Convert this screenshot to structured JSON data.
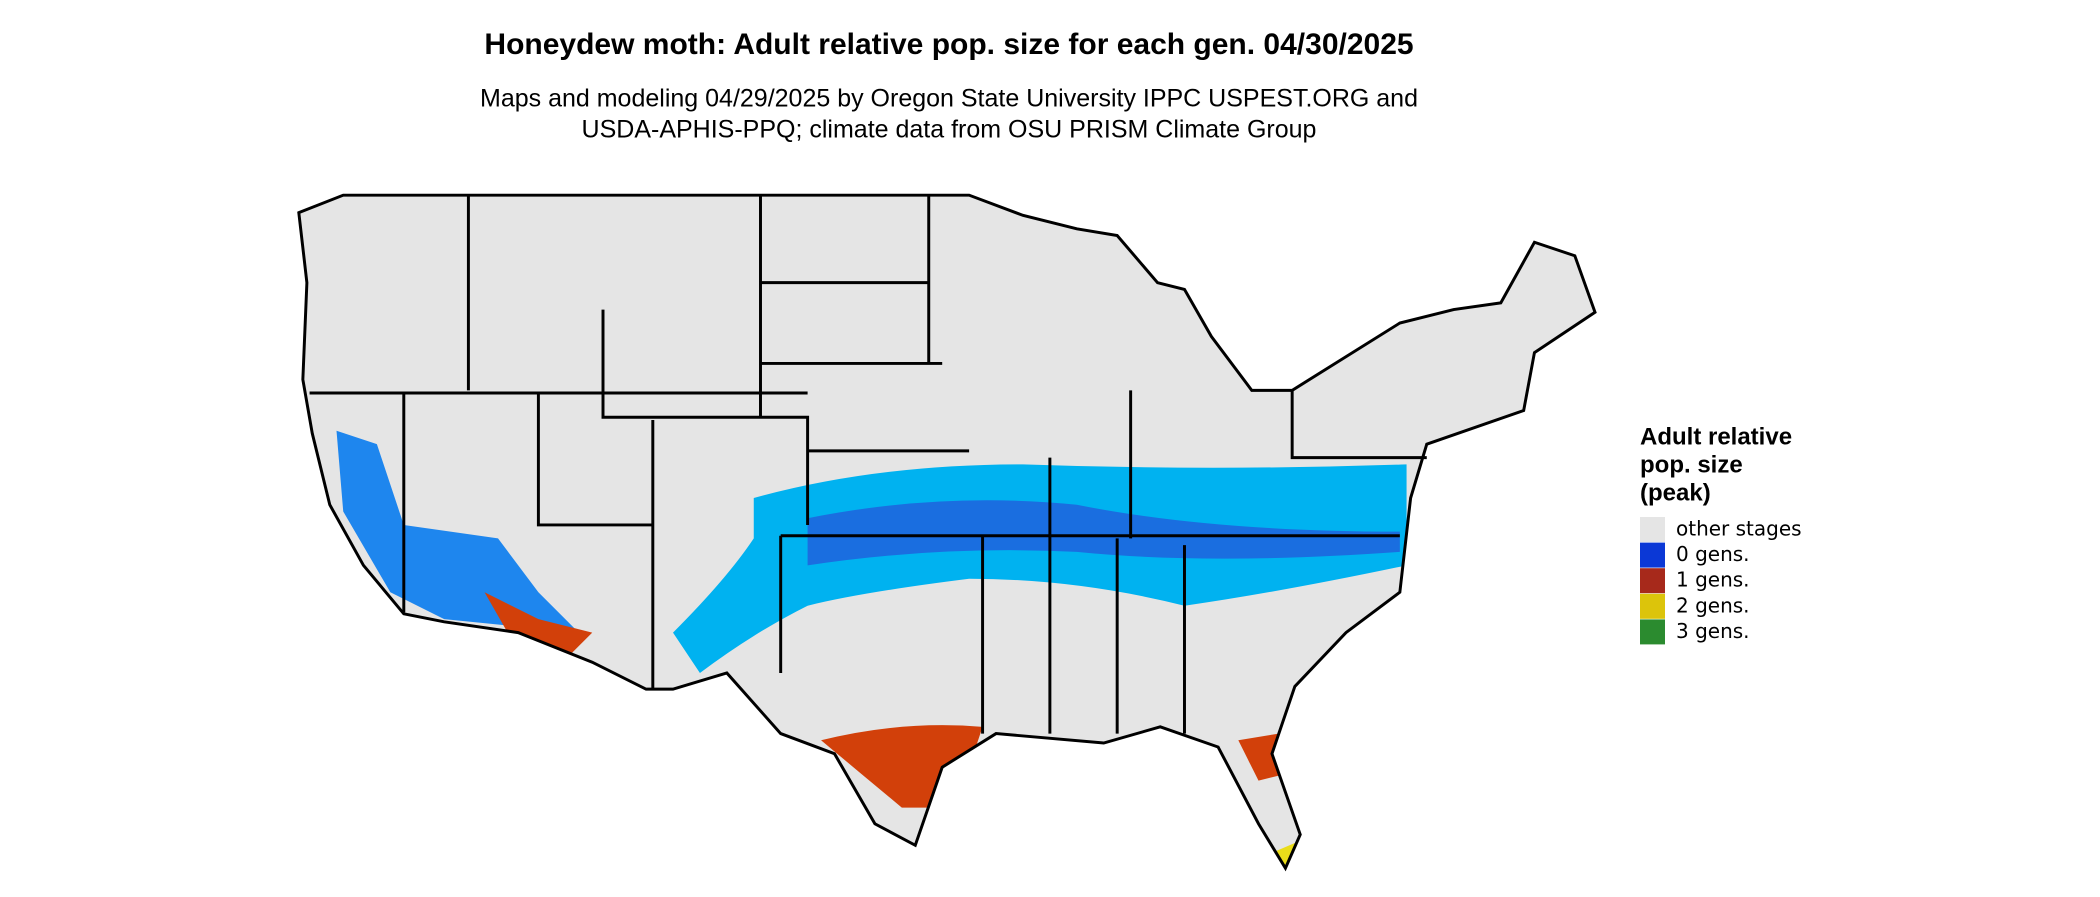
{
  "title": "Honeydew moth: Adult relative pop. size for each gen. 04/30/2025",
  "subtitle_lines": [
    "Maps and modeling 04/29/2025 by Oregon State University IPPC USPEST.ORG and",
    "USDA-APHIS-PPQ; climate data from OSU PRISM Climate Group"
  ],
  "legend": {
    "title_lines": [
      "Adult relative",
      "pop. size",
      "(peak)"
    ],
    "entries": [
      {
        "label": "other stages",
        "color": "#e5e5e5"
      },
      {
        "label": "0 gens.",
        "color": "#0b38d6"
      },
      {
        "label": "1 gens.",
        "color": "#a7291b"
      },
      {
        "label": "2 gens.",
        "color": "#dcc40b"
      },
      {
        "label": "3 gens.",
        "color": "#2b8b2f"
      }
    ]
  }
}
